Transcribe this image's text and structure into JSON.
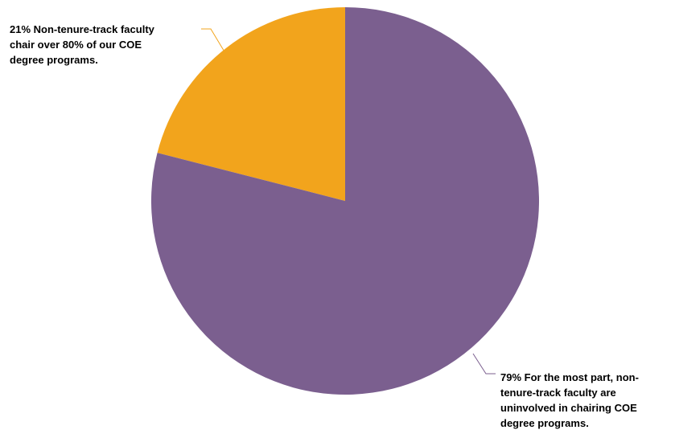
{
  "chart_data": {
    "type": "pie",
    "slices": [
      {
        "value": 21,
        "color": "#f2a41c",
        "label_lines": [
          "21% Non-tenure-track faculty",
          "chair over 80% of our COE",
          "degree programs."
        ]
      },
      {
        "value": 79,
        "color": "#7b5f8f",
        "label_lines": [
          "79% For the most part, non-",
          "tenure-track faculty are",
          "uninvolved in chairing COE",
          "degree programs."
        ]
      }
    ]
  }
}
